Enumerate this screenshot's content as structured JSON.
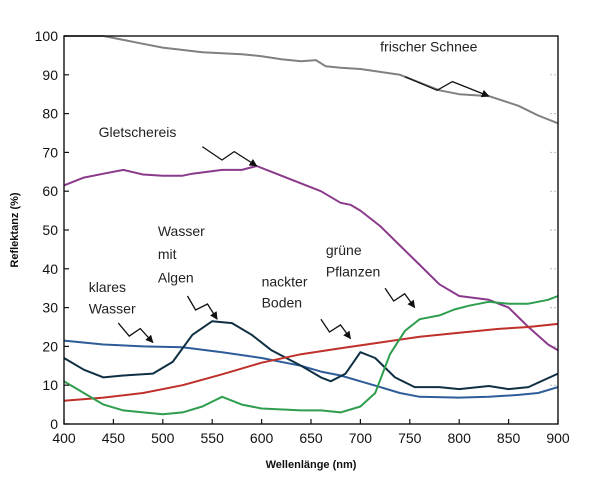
{
  "chart_data": {
    "type": "line",
    "title": "",
    "xlabel": "Wellenlänge (nm)",
    "ylabel": "Reflektanz (%)",
    "xlim": [
      400,
      900
    ],
    "ylim": [
      0,
      100
    ],
    "xticks": [
      400,
      450,
      500,
      550,
      600,
      650,
      700,
      750,
      800,
      850,
      900
    ],
    "yticks": [
      0,
      10,
      20,
      30,
      40,
      50,
      60,
      70,
      80,
      90,
      100
    ],
    "grid": "dashed y-grid at right edge",
    "legend": "none",
    "series": [
      {
        "name": "frischer Schnee",
        "color": "#808080",
        "points": [
          [
            400,
            100
          ],
          [
            440,
            100
          ],
          [
            460,
            99
          ],
          [
            480,
            98
          ],
          [
            500,
            97
          ],
          [
            540,
            95.8
          ],
          [
            580,
            95.3
          ],
          [
            600,
            94.8
          ],
          [
            620,
            94
          ],
          [
            640,
            93.5
          ],
          [
            655,
            93.8
          ],
          [
            665,
            92.2
          ],
          [
            680,
            91.8
          ],
          [
            700,
            91.5
          ],
          [
            740,
            90
          ],
          [
            780,
            86
          ],
          [
            800,
            85
          ],
          [
            830,
            84.5
          ],
          [
            860,
            82
          ],
          [
            880,
            79.5
          ],
          [
            900,
            77.5
          ]
        ]
      },
      {
        "name": "Gletschereis",
        "color": "#8B3A8B",
        "points": [
          [
            400,
            61.5
          ],
          [
            420,
            63.5
          ],
          [
            440,
            64.5
          ],
          [
            460,
            65.5
          ],
          [
            480,
            64.3
          ],
          [
            500,
            64
          ],
          [
            520,
            64
          ],
          [
            530,
            64.5
          ],
          [
            560,
            65.5
          ],
          [
            580,
            65.5
          ],
          [
            595,
            66.5
          ],
          [
            610,
            65
          ],
          [
            640,
            62
          ],
          [
            660,
            60
          ],
          [
            680,
            57
          ],
          [
            690,
            56.5
          ],
          [
            700,
            55
          ],
          [
            720,
            51
          ],
          [
            740,
            46
          ],
          [
            760,
            41
          ],
          [
            780,
            36
          ],
          [
            800,
            33
          ],
          [
            830,
            32
          ],
          [
            850,
            30
          ],
          [
            870,
            25
          ],
          [
            890,
            20.5
          ],
          [
            900,
            19
          ]
        ]
      },
      {
        "name": "klares Wasser",
        "color": "#2E5C99",
        "points": [
          [
            400,
            21.5
          ],
          [
            440,
            20.5
          ],
          [
            480,
            20
          ],
          [
            520,
            19.8
          ],
          [
            560,
            18.5
          ],
          [
            600,
            17
          ],
          [
            640,
            15
          ],
          [
            660,
            13.5
          ],
          [
            680,
            12.5
          ],
          [
            700,
            11
          ],
          [
            720,
            9.5
          ],
          [
            740,
            8
          ],
          [
            760,
            7
          ],
          [
            800,
            6.8
          ],
          [
            830,
            7
          ],
          [
            860,
            7.5
          ],
          [
            880,
            8
          ],
          [
            900,
            9.5
          ]
        ]
      },
      {
        "name": "Wasser mit Algen",
        "color": "#0F3044",
        "points": [
          [
            400,
            17
          ],
          [
            420,
            14
          ],
          [
            440,
            12
          ],
          [
            460,
            12.5
          ],
          [
            490,
            13
          ],
          [
            510,
            16
          ],
          [
            530,
            23
          ],
          [
            550,
            26.5
          ],
          [
            570,
            26
          ],
          [
            590,
            23
          ],
          [
            610,
            19
          ],
          [
            640,
            15
          ],
          [
            660,
            12
          ],
          [
            670,
            11
          ],
          [
            685,
            13
          ],
          [
            700,
            18.5
          ],
          [
            715,
            17
          ],
          [
            735,
            12
          ],
          [
            755,
            9.5
          ],
          [
            780,
            9.5
          ],
          [
            800,
            9
          ],
          [
            830,
            9.8
          ],
          [
            850,
            9
          ],
          [
            870,
            9.5
          ],
          [
            900,
            13
          ]
        ]
      },
      {
        "name": "nackter Boden",
        "color": "#C0302B",
        "points": [
          [
            400,
            6
          ],
          [
            440,
            6.8
          ],
          [
            480,
            8
          ],
          [
            520,
            10
          ],
          [
            560,
            12.8
          ],
          [
            600,
            15.8
          ],
          [
            640,
            18
          ],
          [
            680,
            19.5
          ],
          [
            720,
            21
          ],
          [
            760,
            22.5
          ],
          [
            800,
            23.5
          ],
          [
            840,
            24.5
          ],
          [
            870,
            25
          ],
          [
            900,
            25.8
          ]
        ]
      },
      {
        "name": "grüne Pflanzen",
        "color": "#2E9E4E",
        "points": [
          [
            400,
            11
          ],
          [
            420,
            8
          ],
          [
            440,
            5
          ],
          [
            460,
            3.5
          ],
          [
            480,
            3
          ],
          [
            500,
            2.5
          ],
          [
            520,
            3
          ],
          [
            540,
            4.5
          ],
          [
            560,
            7
          ],
          [
            580,
            5
          ],
          [
            600,
            4
          ],
          [
            640,
            3.5
          ],
          [
            660,
            3.5
          ],
          [
            680,
            3
          ],
          [
            700,
            4.5
          ],
          [
            715,
            8
          ],
          [
            730,
            18
          ],
          [
            745,
            24
          ],
          [
            760,
            27
          ],
          [
            780,
            28
          ],
          [
            795,
            29.5
          ],
          [
            810,
            30.5
          ],
          [
            830,
            31.5
          ],
          [
            850,
            31
          ],
          [
            870,
            31
          ],
          [
            890,
            32
          ],
          [
            900,
            33
          ]
        ]
      }
    ],
    "annotations": [
      {
        "text": "frischer Schnee",
        "x": 720,
        "y": 96
      },
      {
        "text": "Gletschereis",
        "x": 435,
        "y": 74
      },
      {
        "text": "Wasser",
        "x": 495,
        "y": 48.5
      },
      {
        "text": "mit",
        "x": 495,
        "y": 42.5
      },
      {
        "text": "Algen",
        "x": 495,
        "y": 36.5
      },
      {
        "text": "klares",
        "x": 425,
        "y": 34
      },
      {
        "text": "Wasser",
        "x": 425,
        "y": 28.5
      },
      {
        "text": "nackter",
        "x": 600,
        "y": 35.5
      },
      {
        "text": "Boden",
        "x": 600,
        "y": 30
      },
      {
        "text": "grüne",
        "x": 665,
        "y": 43.5
      },
      {
        "text": "Pflanzen",
        "x": 665,
        "y": 38
      }
    ],
    "arrows": [
      {
        "label": "frischer Schnee",
        "from": [
          745,
          89.5
        ],
        "to": [
          830,
          84.5
        ]
      },
      {
        "label": "Gletschereis",
        "from": [
          540,
          71.5
        ],
        "to": [
          595,
          66.5
        ]
      },
      {
        "label": "Wasser mit Algen",
        "from": [
          525,
          33
        ],
        "to": [
          555,
          27
        ]
      },
      {
        "label": "klares Wasser",
        "from": [
          455,
          26
        ],
        "to": [
          490,
          21
        ]
      },
      {
        "label": "nackter Boden",
        "from": [
          660,
          27
        ],
        "to": [
          690,
          22
        ]
      },
      {
        "label": "grüne Pflanzen",
        "from": [
          725,
          35
        ],
        "to": [
          755,
          30
        ]
      }
    ]
  }
}
